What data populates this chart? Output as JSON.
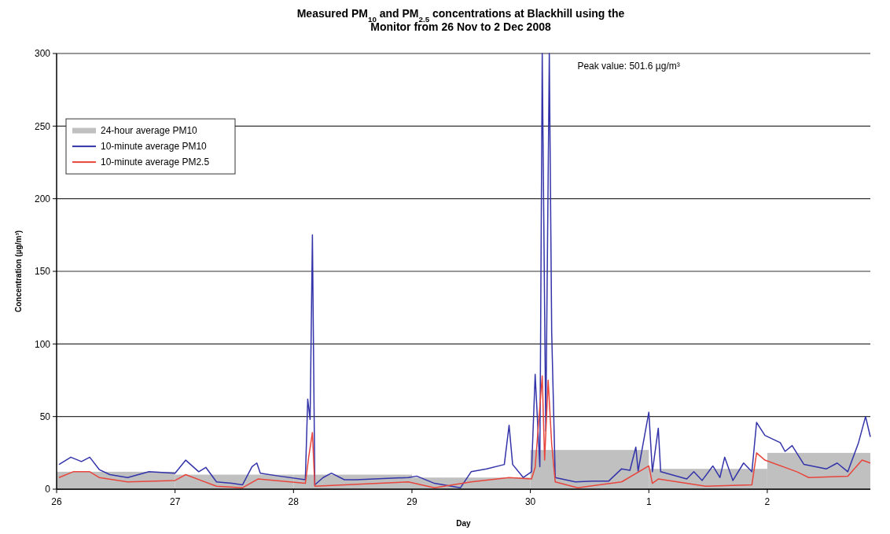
{
  "chart_data": {
    "type": "line",
    "title": "Measured PM$_{10}$ and PM$_{2.5}$ concentrations at Blackhill using the Monitor from 26 Nov to 2 Dec 2008",
    "xlabel": "Day",
    "ylabel": "Concentration (µg/m³)",
    "annotations": [
      "Peak value: 501.6 µg/m³"
    ],
    "xlim": [
      "2008-11-26",
      "2008-12-02T20:53"
    ],
    "xticks": [
      {
        "value": "2008-11-26",
        "label": "26"
      },
      {
        "value": "2008-11-27",
        "label": "27"
      },
      {
        "value": "2008-11-28",
        "label": "28"
      },
      {
        "value": "2008-11-29",
        "label": "29"
      },
      {
        "value": "2008-11-30",
        "label": "30"
      },
      {
        "value": "2008-12-01",
        "label": "1"
      },
      {
        "value": "2008-12-02",
        "label": "2"
      }
    ],
    "ylim": [
      0,
      300
    ],
    "yticks": [
      0,
      50,
      100,
      150,
      200,
      250,
      300
    ],
    "grid": "y",
    "legend": "top left",
    "series": [
      {
        "type": "bar",
        "name": "24-hour average PM10",
        "color": "#c0c0c0",
        "x": [
          "2008-11-26T12:00",
          "2008-11-27T12:00",
          "2008-11-28T12:00",
          "2008-11-29T12:00",
          "2008-11-30T12:00",
          "2008-12-01T12:00",
          "2008-12-02T12:00"
        ],
        "values": [
          12,
          10,
          10,
          8,
          27,
          14,
          25
        ]
      },
      {
        "name": "10-minute average PM10",
        "color": "#3333aa",
        "x": [
          "2008-11-26T00:29",
          "2008-11-26T02:53",
          "2008-11-26T05:02",
          "2008-11-26T06:43",
          "2008-11-26T08:38",
          "2008-11-26T10:48",
          "2008-11-26T14:24",
          "2008-11-26T18:43",
          "2008-11-27T00:00",
          "2008-11-27T02:10",
          "2008-11-27T04:48",
          "2008-11-27T06:14",
          "2008-11-27T08:24",
          "2008-11-27T11:31",
          "2008-11-27T13:41",
          "2008-11-27T15:36",
          "2008-11-27T16:34",
          "2008-11-27T17:17",
          "2008-11-27T21:07",
          "2008-11-28T02:24",
          "2008-11-28T02:53",
          "2008-11-28T03:22",
          "2008-11-28T03:50",
          "2008-11-28T04:19",
          "2008-11-28T06:00",
          "2008-11-28T07:41",
          "2008-11-28T10:19",
          "2008-11-28T12:43",
          "2008-11-28T23:17",
          "2008-11-29T00:58",
          "2008-11-29T04:34",
          "2008-11-29T09:50",
          "2008-11-29T12:00",
          "2008-11-29T15:07",
          "2008-11-29T18:43",
          "2008-11-29T19:41",
          "2008-11-29T20:24",
          "2008-11-29T22:34",
          "2008-11-30T00:14",
          "2008-11-30T00:58",
          "2008-11-30T01:55",
          "2008-11-30T02:24",
          "2008-11-30T03:07",
          "2008-11-30T03:50",
          "2008-11-30T04:19",
          "2008-11-30T05:02",
          "2008-11-30T09:07",
          "2008-11-30T12:43",
          "2008-11-30T15:50",
          "2008-11-30T18:29",
          "2008-11-30T20:10",
          "2008-11-30T21:22",
          "2008-11-30T21:50",
          "2008-12-01T00:00",
          "2008-12-01T00:43",
          "2008-12-01T01:55",
          "2008-12-01T02:24",
          "2008-12-01T07:41",
          "2008-12-01T09:07",
          "2008-12-01T10:48",
          "2008-12-01T12:58",
          "2008-12-01T14:24",
          "2008-12-01T15:22",
          "2008-12-01T17:02",
          "2008-12-01T19:12",
          "2008-12-01T20:53",
          "2008-12-01T21:50",
          "2008-12-01T23:31",
          "2008-12-02T02:38",
          "2008-12-02T03:36",
          "2008-12-02T05:02",
          "2008-12-02T07:26",
          "2008-12-02T12:00",
          "2008-12-02T14:10",
          "2008-12-02T16:19",
          "2008-12-02T18:29",
          "2008-12-02T19:55",
          "2008-12-02T20:53"
        ],
        "values": [
          17,
          22,
          19,
          22,
          13.5,
          10,
          8,
          12,
          11,
          20,
          12,
          15,
          5,
          4,
          3,
          15.5,
          18,
          11,
          9,
          6.5,
          62,
          48,
          175,
          3,
          8,
          11,
          6.5,
          6.5,
          8,
          9,
          4,
          1,
          12,
          14,
          17,
          44,
          17,
          8,
          12,
          79,
          15.5,
          300,
          40,
          300,
          108,
          8,
          5,
          5.5,
          5.5,
          14,
          13,
          29,
          12.5,
          53,
          12,
          42,
          12,
          7,
          12,
          6,
          16,
          8,
          22,
          6,
          18,
          12,
          46,
          37,
          32,
          26,
          30,
          17,
          14,
          18,
          12,
          32,
          50,
          36
        ]
      },
      {
        "name": "10-minute average PM2.5",
        "color": "#e8453c",
        "x": [
          "2008-11-26T00:29",
          "2008-11-26T03:22",
          "2008-11-26T06:43",
          "2008-11-26T08:38",
          "2008-11-26T14:24",
          "2008-11-27T00:00",
          "2008-11-27T02:10",
          "2008-11-27T08:24",
          "2008-11-27T13:41",
          "2008-11-27T16:48",
          "2008-11-28T02:24",
          "2008-11-28T03:07",
          "2008-11-28T03:50",
          "2008-11-28T04:19",
          "2008-11-28T10:19",
          "2008-11-28T23:17",
          "2008-11-29T04:34",
          "2008-11-29T12:00",
          "2008-11-29T17:17",
          "2008-11-29T19:41",
          "2008-11-30T00:14",
          "2008-11-30T00:58",
          "2008-11-30T02:24",
          "2008-11-30T02:53",
          "2008-11-30T03:36",
          "2008-11-30T04:19",
          "2008-11-30T05:02",
          "2008-11-30T09:36",
          "2008-11-30T18:29",
          "2008-12-01T00:00",
          "2008-12-01T00:43",
          "2008-12-01T01:55",
          "2008-12-01T11:31",
          "2008-12-01T20:53",
          "2008-12-01T21:50",
          "2008-12-01T23:31",
          "2008-12-02T06:00",
          "2008-12-02T08:24",
          "2008-12-02T16:19",
          "2008-12-02T19:12",
          "2008-12-02T20:53"
        ],
        "values": [
          8,
          12,
          12,
          8,
          5,
          6,
          10,
          2,
          1,
          7,
          4,
          23,
          39,
          2,
          3,
          5,
          1,
          5,
          7,
          8,
          7,
          15,
          78,
          20,
          75,
          31,
          5,
          1,
          5,
          16,
          4,
          7,
          2,
          3,
          25,
          20,
          12,
          8,
          9,
          20,
          18
        ]
      }
    ]
  }
}
